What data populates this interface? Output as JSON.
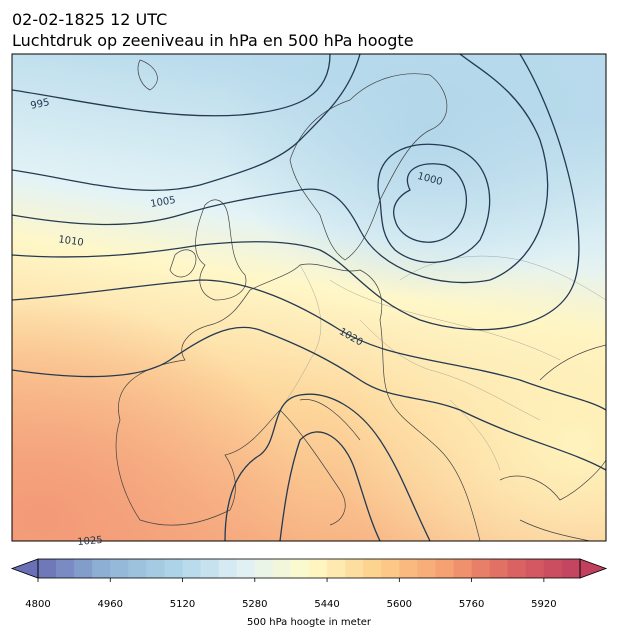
{
  "header": {
    "title": "02-02-1825 12 UTC",
    "subtitle": "Luchtdruk op zeeniveau in hPa en 500 hPa hoogte"
  },
  "map": {
    "contour_labels": [
      995,
      1005,
      1010,
      1020,
      1000,
      1025
    ]
  },
  "colorbar": {
    "label": "500 hPa hoogte in meter",
    "range": [
      4800,
      6000
    ],
    "step": 40,
    "ticks": [
      4800,
      4960,
      5120,
      5280,
      5440,
      5600,
      5760,
      5920
    ],
    "colors": [
      "#6a70b5",
      "#8fb4d6",
      "#acd3e7",
      "#dff0f6",
      "#fffbc9",
      "#fdd08c",
      "#f6a171",
      "#dc6462",
      "#c0405e"
    ]
  }
}
